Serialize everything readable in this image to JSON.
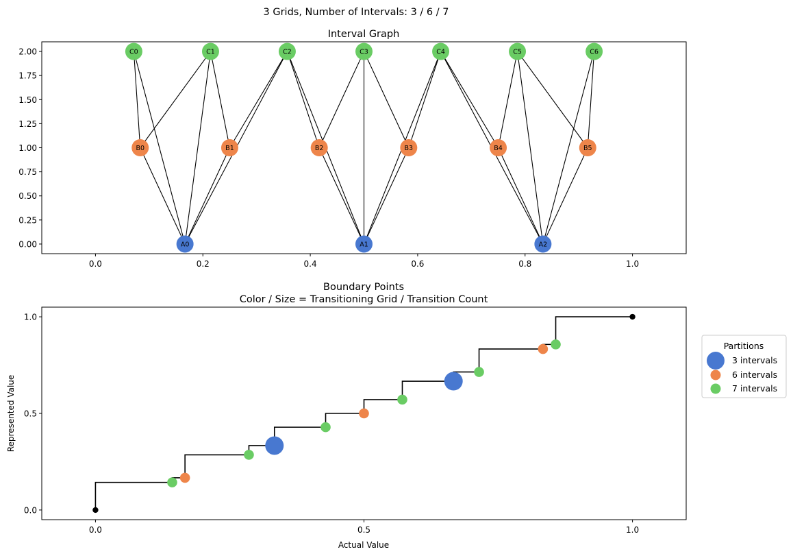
{
  "suptitle": "3 Grids, Number of Intervals: 3 / 6 / 7",
  "colors": {
    "grid3": "#4878d0",
    "grid6": "#ee854a",
    "grid7": "#6acc64",
    "endpoint": "#000000"
  },
  "chart_data": [
    {
      "type": "network",
      "title": "Interval Graph",
      "xlim": [
        -0.1,
        1.1
      ],
      "ylim": [
        -0.1,
        2.1
      ],
      "xticks": [
        "0.0",
        "0.2",
        "0.4",
        "0.6",
        "0.8",
        "1.0"
      ],
      "yticks": [
        "0.00",
        "0.25",
        "0.50",
        "0.75",
        "1.00",
        "1.25",
        "1.50",
        "1.75",
        "2.00"
      ],
      "grid": false,
      "nodes": [
        {
          "id": "A0",
          "x": 0.1667,
          "y": 0,
          "grid": 3
        },
        {
          "id": "A1",
          "x": 0.5,
          "y": 0,
          "grid": 3
        },
        {
          "id": "A2",
          "x": 0.8333,
          "y": 0,
          "grid": 3
        },
        {
          "id": "B0",
          "x": 0.0833,
          "y": 1,
          "grid": 6
        },
        {
          "id": "B1",
          "x": 0.25,
          "y": 1,
          "grid": 6
        },
        {
          "id": "B2",
          "x": 0.4167,
          "y": 1,
          "grid": 6
        },
        {
          "id": "B3",
          "x": 0.5833,
          "y": 1,
          "grid": 6
        },
        {
          "id": "B4",
          "x": 0.75,
          "y": 1,
          "grid": 6
        },
        {
          "id": "B5",
          "x": 0.9167,
          "y": 1,
          "grid": 6
        },
        {
          "id": "C0",
          "x": 0.0714,
          "y": 2,
          "grid": 7
        },
        {
          "id": "C1",
          "x": 0.2143,
          "y": 2,
          "grid": 7
        },
        {
          "id": "C2",
          "x": 0.3571,
          "y": 2,
          "grid": 7
        },
        {
          "id": "C3",
          "x": 0.5,
          "y": 2,
          "grid": 7
        },
        {
          "id": "C4",
          "x": 0.6429,
          "y": 2,
          "grid": 7
        },
        {
          "id": "C5",
          "x": 0.7857,
          "y": 2,
          "grid": 7
        },
        {
          "id": "C6",
          "x": 0.9286,
          "y": 2,
          "grid": 7
        }
      ],
      "edges": [
        [
          "A0",
          "B0"
        ],
        [
          "A0",
          "B1"
        ],
        [
          "A0",
          "C0"
        ],
        [
          "A0",
          "C1"
        ],
        [
          "A0",
          "C2"
        ],
        [
          "A1",
          "B2"
        ],
        [
          "A1",
          "B3"
        ],
        [
          "A1",
          "C2"
        ],
        [
          "A1",
          "C3"
        ],
        [
          "A1",
          "C4"
        ],
        [
          "A2",
          "B4"
        ],
        [
          "A2",
          "B5"
        ],
        [
          "A2",
          "C4"
        ],
        [
          "A2",
          "C5"
        ],
        [
          "A2",
          "C6"
        ],
        [
          "B0",
          "C0"
        ],
        [
          "B0",
          "C1"
        ],
        [
          "B1",
          "C1"
        ],
        [
          "B1",
          "C2"
        ],
        [
          "B2",
          "C2"
        ],
        [
          "B2",
          "C3"
        ],
        [
          "B3",
          "C3"
        ],
        [
          "B3",
          "C4"
        ],
        [
          "B4",
          "C4"
        ],
        [
          "B4",
          "C5"
        ],
        [
          "B5",
          "C5"
        ],
        [
          "B5",
          "C6"
        ]
      ]
    },
    {
      "type": "scatter",
      "title": "Boundary Points",
      "subtitle": "Color / Size = Transitioning Grid / Transition Count",
      "xlabel": "Actual Value",
      "ylabel": "Represented Value",
      "xlim": [
        -0.1,
        1.1
      ],
      "ylim": [
        -0.05,
        1.05
      ],
      "xticks": [
        "0.0",
        "0.5",
        "1.0"
      ],
      "yticks": [
        "0.0",
        "0.5",
        "1.0"
      ],
      "grid": false,
      "legend": {
        "title": "Partitions",
        "placement": "outside-right",
        "entries": [
          {
            "label": "3 intervals",
            "grid": 3
          },
          {
            "label": "6 intervals",
            "grid": 6
          },
          {
            "label": "7 intervals",
            "grid": 7
          }
        ]
      },
      "step_x": [
        0,
        0.1429,
        0.1667,
        0.2857,
        0.3333,
        0.4286,
        0.5,
        0.5714,
        0.6667,
        0.7143,
        0.8333,
        0.8571,
        1.0
      ],
      "step_y": [
        0,
        0.1429,
        0.1667,
        0.2857,
        0.3333,
        0.4286,
        0.5,
        0.5714,
        0.6667,
        0.7143,
        0.8333,
        0.8571,
        1.0
      ],
      "points": [
        {
          "x": 0.1429,
          "y": 0.1429,
          "grid": 7,
          "count": 1
        },
        {
          "x": 0.1667,
          "y": 0.1667,
          "grid": 6,
          "count": 1
        },
        {
          "x": 0.2857,
          "y": 0.2857,
          "grid": 7,
          "count": 1
        },
        {
          "x": 0.3333,
          "y": 0.3333,
          "grid": 3,
          "count": 3
        },
        {
          "x": 0.4286,
          "y": 0.4286,
          "grid": 7,
          "count": 1
        },
        {
          "x": 0.5,
          "y": 0.5,
          "grid": 6,
          "count": 1
        },
        {
          "x": 0.5714,
          "y": 0.5714,
          "grid": 7,
          "count": 1
        },
        {
          "x": 0.6667,
          "y": 0.6667,
          "grid": 3,
          "count": 3
        },
        {
          "x": 0.7143,
          "y": 0.7143,
          "grid": 7,
          "count": 1
        },
        {
          "x": 0.8333,
          "y": 0.8333,
          "grid": 6,
          "count": 1
        },
        {
          "x": 0.8571,
          "y": 0.8571,
          "grid": 7,
          "count": 1
        }
      ],
      "endpoints": [
        {
          "x": 0,
          "y": 0
        },
        {
          "x": 1,
          "y": 1
        }
      ]
    }
  ]
}
